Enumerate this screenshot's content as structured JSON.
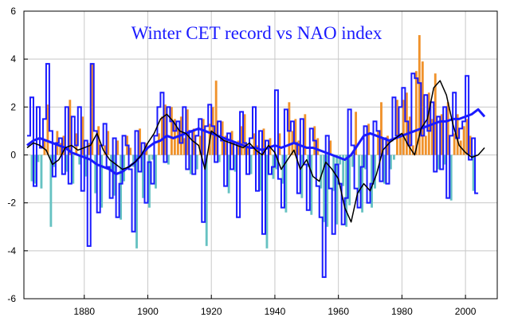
{
  "chart_data": {
    "type": "bar",
    "title": "Winter CET record vs NAO index",
    "xlabel": "",
    "ylabel": "",
    "xlim": [
      1861,
      2010
    ],
    "ylim": [
      -6,
      6
    ],
    "x_ticks": [
      1880,
      1900,
      1920,
      1940,
      1960,
      1980,
      2000
    ],
    "y_ticks": [
      -6,
      -4,
      -2,
      0,
      2,
      4,
      6
    ],
    "grid": true,
    "legend": "none",
    "colors": {
      "positive_bar": "#f0922b",
      "negative_bar": "#66c2c2",
      "step_line": "#1a1aff",
      "smooth_blue": "#1a1aff",
      "smooth_black": "#000000",
      "title": "#1a1aff",
      "grid": "#c8c8c8"
    },
    "series": [
      {
        "kind": "bars",
        "x_start": 1863,
        "values": [
          -1.1,
          -1.2,
          -0.3,
          -1.4,
          0.6,
          2.1,
          -3.0,
          -0.5,
          1.0,
          0.5,
          0.8,
          -0.7,
          2.3,
          -1.2,
          0.9,
          -0.4,
          1.6,
          -0.9,
          0.5,
          3.8,
          -1.6,
          1.2,
          -2.2,
          0.4,
          1.0,
          -0.6,
          -1.7,
          0.6,
          -2.7,
          -1.1,
          0.8,
          0.3,
          -0.5,
          -3.9,
          1.1,
          -1.8,
          0.5,
          -2.2,
          -0.2,
          -1.4,
          0.9,
          1.6,
          2.1,
          -0.4,
          2.0,
          1.5,
          1.1,
          1.6,
          0.7,
          1.9,
          -0.8,
          1.1,
          -0.6,
          0.8,
          1.5,
          -3.8,
          1.3,
          2.0,
          3.1,
          -0.3,
          1.4,
          0.8,
          -1.6,
          1.0,
          -0.7,
          0.6,
          1.2,
          1.7,
          0.4,
          -0.8,
          0.9,
          0.4,
          -1.5,
          1.1,
          -3.9,
          0.7,
          -1.0,
          -0.6,
          0.9,
          -1.2,
          -2.4,
          2.2,
          1.0,
          1.5,
          0.6,
          -1.8,
          1.7,
          -0.5,
          -2.5,
          1.2,
          0.7,
          -1.4,
          -2.8,
          -3.0,
          0.6,
          -1.5,
          -2.9,
          -0.4,
          -1.3,
          -3.0,
          -2.1,
          -0.5,
          1.8,
          -1.6,
          -2.4,
          -0.6,
          1.3,
          -2.2,
          -1.4,
          1.0,
          2.2,
          -1.2,
          0.8,
          -0.6,
          -0.2,
          2.3,
          0.9,
          2.3,
          2.6,
          1.6,
          0.4,
          3.5,
          5.0,
          3.9,
          0.8,
          2.6,
          1.5,
          3.4,
          -0.6,
          1.7,
          -0.4,
          2.2,
          -1.9,
          0.9,
          1.7,
          0.6,
          1.2,
          1.5,
          0.8,
          -1.5
        ],
        "bar_width_years": 0.72
      },
      {
        "kind": "step",
        "x_start": 1862,
        "values": [
          0.8,
          2.4,
          -1.3,
          2.0,
          0.3,
          1.5,
          3.8,
          1.0,
          -0.9,
          0.5,
          0.7,
          -0.8,
          2.0,
          -1.2,
          1.6,
          0.4,
          2.0,
          -1.5,
          0.6,
          -3.8,
          3.8,
          1.0,
          -2.4,
          0.4,
          1.3,
          -0.5,
          -1.8,
          0.7,
          -2.6,
          -1.2,
          0.8,
          0.4,
          -0.6,
          -3.2,
          1.0,
          -0.7,
          0.5,
          -2.0,
          -0.3,
          -1.2,
          0.8,
          2.0,
          2.6,
          -0.3,
          2.0,
          1.4,
          1.0,
          1.4,
          0.5,
          2.0,
          -0.6,
          1.0,
          -0.8,
          0.8,
          1.5,
          -2.8,
          1.2,
          2.1,
          1.2,
          -0.3,
          1.4,
          0.6,
          -1.3,
          0.9,
          -0.6,
          0.5,
          -2.6,
          1.8,
          0.5,
          -0.8,
          0.7,
          2.0,
          -1.5,
          1.0,
          -3.3,
          0.6,
          -0.8,
          -0.5,
          2.7,
          -1.0,
          -2.2,
          1.9,
          1.0,
          1.4,
          0.5,
          -1.6,
          1.5,
          -0.4,
          -2.3,
          1.1,
          0.6,
          -1.3,
          -2.6,
          -5.1,
          0.8,
          -1.4,
          -3.3,
          -0.4,
          -1.2,
          -2.9,
          -1.8,
          1.9,
          0.4,
          -1.4,
          -2.2,
          -0.5,
          1.2,
          -2.0,
          -1.2,
          1.4,
          1.0,
          -1.1,
          0.7,
          -1.2,
          0.6,
          2.4,
          0.8,
          2.0,
          2.8,
          1.4,
          0.4,
          3.4,
          3.2,
          3.0,
          0.8,
          2.5,
          1.0,
          2.2,
          -0.7,
          1.6,
          -0.6,
          2.0,
          -1.8,
          0.8,
          2.6,
          0.7,
          1.1,
          1.4,
          3.3,
          -0.2,
          0.7,
          -1.6
        ]
      },
      {
        "kind": "line",
        "style": "smooth_blue",
        "x": [
          1862,
          1864,
          1866,
          1868,
          1870,
          1872,
          1874,
          1876,
          1878,
          1880,
          1882,
          1884,
          1886,
          1888,
          1890,
          1892,
          1894,
          1896,
          1898,
          1900,
          1902,
          1904,
          1906,
          1908,
          1910,
          1912,
          1914,
          1916,
          1918,
          1920,
          1922,
          1924,
          1926,
          1928,
          1930,
          1932,
          1934,
          1936,
          1938,
          1940,
          1942,
          1944,
          1946,
          1948,
          1950,
          1952,
          1954,
          1956,
          1958,
          1960,
          1962,
          1964,
          1966,
          1968,
          1970,
          1972,
          1974,
          1976,
          1978,
          1980,
          1982,
          1984,
          1986,
          1988,
          1990,
          1992,
          1994,
          1996,
          1998,
          2000,
          2002,
          2004,
          2006
        ],
        "values": [
          0.4,
          0.6,
          0.7,
          0.6,
          0.5,
          0.4,
          0.3,
          0.1,
          0.0,
          -0.1,
          -0.2,
          -0.4,
          -0.5,
          -0.6,
          -0.8,
          -0.7,
          -0.5,
          -0.3,
          0.0,
          0.3,
          0.5,
          0.6,
          0.8,
          0.7,
          0.8,
          0.9,
          1.0,
          1.1,
          1.0,
          0.9,
          0.8,
          0.7,
          0.6,
          0.5,
          0.4,
          0.3,
          0.3,
          0.2,
          0.3,
          0.4,
          0.3,
          0.4,
          0.5,
          0.4,
          0.3,
          0.3,
          0.2,
          0.1,
          0.0,
          -0.1,
          -0.2,
          0.0,
          0.4,
          0.8,
          0.9,
          0.8,
          0.7,
          0.6,
          0.7,
          0.8,
          0.9,
          1.0,
          1.1,
          1.2,
          1.3,
          1.4,
          1.4,
          1.5,
          1.5,
          1.6,
          1.7,
          1.9,
          1.6
        ]
      },
      {
        "kind": "line",
        "style": "smooth_black",
        "x": [
          1862,
          1864,
          1866,
          1868,
          1870,
          1872,
          1874,
          1876,
          1878,
          1880,
          1882,
          1884,
          1886,
          1888,
          1890,
          1892,
          1894,
          1896,
          1898,
          1900,
          1902,
          1904,
          1906,
          1908,
          1910,
          1912,
          1914,
          1916,
          1918,
          1920,
          1922,
          1924,
          1926,
          1928,
          1930,
          1932,
          1934,
          1936,
          1938,
          1940,
          1942,
          1944,
          1946,
          1948,
          1950,
          1952,
          1954,
          1956,
          1958,
          1960,
          1962,
          1964,
          1966,
          1968,
          1970,
          1972,
          1974,
          1976,
          1978,
          1980,
          1982,
          1984,
          1986,
          1988,
          1990,
          1992,
          1994,
          1996,
          1998,
          2000,
          2002,
          2004,
          2006
        ],
        "values": [
          0.3,
          0.5,
          0.4,
          0.2,
          -0.4,
          -0.2,
          0.3,
          0.4,
          0.2,
          0.3,
          0.4,
          0.9,
          0.2,
          -0.2,
          -0.4,
          -0.6,
          -0.5,
          -0.3,
          0.0,
          0.5,
          0.9,
          1.5,
          1.7,
          1.4,
          1.0,
          0.9,
          0.6,
          0.4,
          -0.6,
          1.0,
          0.8,
          0.6,
          0.5,
          0.4,
          0.3,
          0.5,
          0.2,
          0.0,
          0.4,
          0.1,
          -0.6,
          -0.2,
          0.2,
          -0.6,
          -0.2,
          -0.9,
          -1.1,
          -0.3,
          -0.6,
          -1.0,
          -2.2,
          -2.8,
          -1.6,
          -1.2,
          -1.5,
          -0.8,
          0.2,
          0.5,
          0.7,
          0.9,
          0.4,
          0.0,
          1.1,
          1.5,
          2.8,
          3.1,
          2.5,
          1.3,
          0.4,
          0.1,
          -0.1,
          0.0,
          0.3
        ]
      }
    ]
  }
}
